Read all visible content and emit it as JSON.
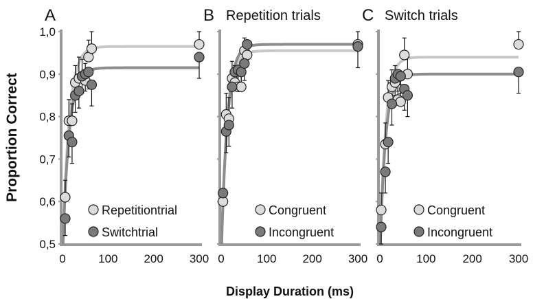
{
  "chart_data": {
    "type": "scatter",
    "ylabel": "Proportion Correct",
    "xlabel": "Display Duration (ms)",
    "ylim": [
      0.5,
      1.0
    ],
    "xlim": [
      0,
      300
    ],
    "yticks": [
      "0,5",
      "0,6",
      "0,7",
      "0,8",
      "0,9",
      "1,0"
    ],
    "xticks": [
      "0",
      "100",
      "200",
      "300"
    ],
    "colors": {
      "light": "#dcdcdc",
      "dark": "#7a7a7a",
      "light_line": "#c8c8c8",
      "dark_line": "#8c8c8c",
      "axis": "#9a9a9a"
    },
    "panels": [
      {
        "letter": "A",
        "title": "",
        "series": [
          {
            "name": "Repetitiontrial",
            "shade": "light",
            "asymptote": 0.965,
            "tau": 14,
            "x": [
              6,
              14,
              21,
              28,
              36,
              43,
              50,
              57,
              64,
              300
            ],
            "y": [
              0.61,
              0.79,
              0.79,
              0.88,
              0.89,
              0.895,
              0.885,
              0.94,
              0.96,
              0.97
            ],
            "err": [
              0.04,
              0.05,
              0.04,
              0.04,
              0.05,
              0.04,
              0.04,
              0.04,
              0.04,
              0.03
            ]
          },
          {
            "name": "Switchtrial",
            "shade": "dark",
            "asymptote": 0.915,
            "tau": 14,
            "x": [
              6,
              14,
              21,
              28,
              36,
              43,
              50,
              57,
              64,
              300
            ],
            "y": [
              0.56,
              0.755,
              0.74,
              0.85,
              0.86,
              0.895,
              0.9,
              0.905,
              0.875,
              0.94
            ],
            "err": [
              0.04,
              0.05,
              0.05,
              0.04,
              0.04,
              0.04,
              0.04,
              0.04,
              0.05,
              0.05
            ]
          }
        ]
      },
      {
        "letter": "B",
        "title": "Repetition trials",
        "series": [
          {
            "name": "Congruent",
            "shade": "light",
            "asymptote": 0.955,
            "tau": 13,
            "x": [
              4,
              11,
              17,
              24,
              30,
              37,
              44,
              51,
              57,
              300
            ],
            "y": [
              0.6,
              0.805,
              0.795,
              0.89,
              0.88,
              0.87,
              0.87,
              0.955,
              0.945,
              0.97
            ],
            "err": [
              0.03,
              0.05,
              0.05,
              0.04,
              0.04,
              0.04,
              0.04,
              0.03,
              0.03,
              0.03
            ]
          },
          {
            "name": "Incongruent",
            "shade": "dark",
            "asymptote": 0.97,
            "tau": 13,
            "x": [
              4,
              11,
              17,
              24,
              30,
              37,
              44,
              51,
              57,
              300
            ],
            "y": [
              0.62,
              0.765,
              0.78,
              0.87,
              0.905,
              0.91,
              0.905,
              0.925,
              0.97,
              0.965
            ],
            "err": [
              0.03,
              0.05,
              0.05,
              0.05,
              0.04,
              0.04,
              0.04,
              0.04,
              0.03,
              0.05
            ]
          }
        ]
      },
      {
        "letter": "C",
        "title": "Switch trials",
        "series": [
          {
            "name": "Congruent",
            "shade": "light",
            "asymptote": 0.94,
            "tau": 12,
            "x": [
              3,
              12,
              18,
              26,
              33,
              39,
              45,
              53,
              60,
              300
            ],
            "y": [
              0.58,
              0.735,
              0.845,
              0.87,
              0.88,
              0.84,
              0.835,
              0.945,
              0.9,
              0.97
            ],
            "err": [
              0.04,
              0.05,
              0.04,
              0.04,
              0.04,
              0.04,
              0.04,
              0.04,
              0.04,
              0.03
            ]
          },
          {
            "name": "Incongruent",
            "shade": "dark",
            "asymptote": 0.9,
            "tau": 12,
            "x": [
              3,
              12,
              18,
              26,
              33,
              39,
              45,
              53,
              60,
              300
            ],
            "y": [
              0.54,
              0.67,
              0.74,
              0.83,
              0.89,
              0.9,
              0.895,
              0.865,
              0.85,
              0.905
            ],
            "err": [
              0.04,
              0.05,
              0.05,
              0.05,
              0.04,
              0.04,
              0.04,
              0.05,
              0.05,
              0.05
            ]
          }
        ]
      }
    ]
  }
}
